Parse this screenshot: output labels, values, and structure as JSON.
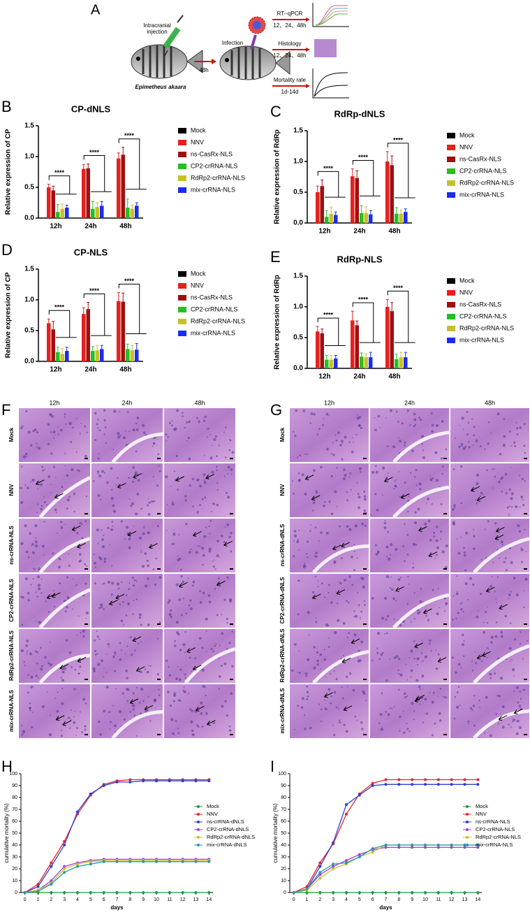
{
  "schematic": {
    "panel": "A",
    "injection": "Intracranial injection",
    "species": "Epimetheus akaara",
    "interval": "48h",
    "infection": "Infection",
    "assays": [
      {
        "name": "RT--qPCR",
        "times": "12、24、48h"
      },
      {
        "name": "Histology",
        "times": "12、24、48h"
      },
      {
        "name": "Mortality rate",
        "times": "1d-14d"
      }
    ]
  },
  "chart_data": [
    {
      "type": "bar",
      "panel": "B",
      "title": "CP-dNLS",
      "ylabel": "Relative expression of CP",
      "categories": [
        "12h",
        "24h",
        "48h"
      ],
      "significance": [
        "****",
        "****",
        "****"
      ],
      "ylim": [
        0,
        1.5
      ],
      "yticks": [
        {
          "value": 0,
          "label": "0.0"
        },
        0.5,
        {
          "value": 1,
          "label": "1.0"
        },
        1.5
      ],
      "series": [
        {
          "name": "Mock",
          "color": "#000000",
          "values": [
            null,
            null,
            null
          ],
          "errors": [
            null,
            null,
            null
          ]
        },
        {
          "name": "NNV",
          "color": "#e8201e",
          "values": [
            0.5,
            0.8,
            0.97
          ],
          "errors": [
            0.05,
            0.07,
            0.09
          ]
        },
        {
          "name": "ns-CasRx-NLS",
          "color": "#a01010",
          "values": [
            0.45,
            0.81,
            1.03
          ],
          "errors": [
            0.07,
            0.07,
            0.12
          ]
        },
        {
          "name": "CP2-crRNA-NLS",
          "color": "#22c020",
          "values": [
            0.1,
            0.15,
            0.17
          ],
          "errors": [
            0.12,
            0.12,
            0.14
          ]
        },
        {
          "name": "RdRp2-crRNA-NLS",
          "color": "#c8c028",
          "values": [
            0.15,
            0.18,
            0.15
          ],
          "errors": [
            0.08,
            0.07,
            0.06
          ]
        },
        {
          "name": "mix-crRNA-NLS",
          "color": "#1a2cf0",
          "values": [
            0.17,
            0.2,
            0.2
          ],
          "errors": [
            0.04,
            0.07,
            0.05
          ]
        }
      ]
    },
    {
      "type": "bar",
      "panel": "C",
      "title": "RdRp-dNLS",
      "ylabel": "Relative expression of RdRp",
      "categories": [
        "12h",
        "24h",
        "48h"
      ],
      "significance": [
        "****",
        "****",
        "****"
      ],
      "ylim": [
        0,
        1.5
      ],
      "yticks": [
        {
          "value": 0,
          "label": "0.0"
        },
        0.5,
        {
          "value": 1,
          "label": "1.0"
        },
        1.5
      ],
      "series": [
        {
          "name": "Mock",
          "color": "#000000",
          "values": [
            null,
            null,
            null
          ],
          "errors": [
            null,
            null,
            null
          ]
        },
        {
          "name": "NNV",
          "color": "#e8201e",
          "values": [
            0.5,
            0.76,
            1.0
          ],
          "errors": [
            0.1,
            0.12,
            0.16
          ]
        },
        {
          "name": "ns-CasRx-NLS",
          "color": "#a01010",
          "values": [
            0.6,
            0.73,
            0.94
          ],
          "errors": [
            0.1,
            0.12,
            0.15
          ]
        },
        {
          "name": "CP2-crRNA-NLS",
          "color": "#22c020",
          "values": [
            0.1,
            0.16,
            0.15
          ],
          "errors": [
            0.1,
            0.12,
            0.1
          ]
        },
        {
          "name": "RdRp2-crRNA-NLS",
          "color": "#c8c028",
          "values": [
            0.15,
            0.16,
            0.15
          ],
          "errors": [
            0.11,
            0.1,
            0.06
          ]
        },
        {
          "name": "mix-crRNA-NLS",
          "color": "#1a2cf0",
          "values": [
            0.13,
            0.14,
            0.18
          ],
          "errors": [
            0.05,
            0.06,
            0.05
          ]
        }
      ]
    },
    {
      "type": "bar",
      "panel": "D",
      "title": "CP-NLS",
      "ylabel": "Relative expression of CP",
      "categories": [
        "12h",
        "24h",
        "48h"
      ],
      "significance": [
        "****",
        "****",
        "****"
      ],
      "ylim": [
        0,
        1.5
      ],
      "yticks": [
        {
          "value": 0,
          "label": "0.0"
        },
        0.5,
        {
          "value": 1,
          "label": "1.0"
        },
        1.5
      ],
      "series": [
        {
          "name": "Mock",
          "color": "#000000",
          "values": [
            null,
            null,
            null
          ],
          "errors": [
            null,
            null,
            null
          ]
        },
        {
          "name": "NNV",
          "color": "#e8201e",
          "values": [
            0.62,
            0.77,
            0.98
          ],
          "errors": [
            0.07,
            0.1,
            0.14
          ]
        },
        {
          "name": "ns-CasRx-NLS",
          "color": "#a01010",
          "values": [
            0.52,
            0.85,
            0.97
          ],
          "errors": [
            0.13,
            0.11,
            0.14
          ]
        },
        {
          "name": "CP2-crRNA-NLS",
          "color": "#22c020",
          "values": [
            0.15,
            0.17,
            0.2
          ],
          "errors": [
            0.08,
            0.07,
            0.08
          ]
        },
        {
          "name": "RdRp2-crRNA-NLS",
          "color": "#c8c028",
          "values": [
            0.12,
            0.18,
            0.18
          ],
          "errors": [
            0.09,
            0.08,
            0.08
          ]
        },
        {
          "name": "mix-crRNA-NLS",
          "color": "#1a2cf0",
          "values": [
            0.17,
            0.2,
            0.19
          ],
          "errors": [
            0.06,
            0.06,
            0.1
          ]
        }
      ]
    },
    {
      "type": "bar",
      "panel": "E",
      "title": "RdRp-NLS",
      "ylabel": "Relative expression of RdRp",
      "categories": [
        "12h",
        "24h",
        "48h"
      ],
      "significance": [
        "****",
        "****",
        "****"
      ],
      "ylim": [
        0,
        1.5
      ],
      "yticks": [
        {
          "value": 0,
          "label": "0.0"
        },
        0.5,
        {
          "value": 1,
          "label": "1.0"
        },
        1.5
      ],
      "series": [
        {
          "name": "Mock",
          "color": "#000000",
          "values": [
            null,
            null,
            null
          ],
          "errors": [
            null,
            null,
            null
          ]
        },
        {
          "name": "NNV",
          "color": "#e8201e",
          "values": [
            0.6,
            0.78,
            1.0
          ],
          "errors": [
            0.08,
            0.15,
            0.12
          ]
        },
        {
          "name": "ns-CasRx-NLS",
          "color": "#a01010",
          "values": [
            0.57,
            0.7,
            0.93
          ],
          "errors": [
            0.07,
            0.07,
            0.14
          ]
        },
        {
          "name": "CP2-crRNA-NLS",
          "color": "#22c020",
          "values": [
            0.14,
            0.19,
            0.15
          ],
          "errors": [
            0.07,
            0.06,
            0.08
          ]
        },
        {
          "name": "RdRp2-crRNA-NLS",
          "color": "#c8c028",
          "values": [
            0.14,
            0.18,
            0.18
          ],
          "errors": [
            0.07,
            0.06,
            0.08
          ]
        },
        {
          "name": "mix-crRNA-NLS",
          "color": "#1a2cf0",
          "values": [
            0.16,
            0.18,
            0.18
          ],
          "errors": [
            0.05,
            0.08,
            0.08
          ]
        }
      ]
    },
    {
      "type": "line",
      "panel": "H",
      "xlabel": "days",
      "ylabel": "cumulative mortality (%)",
      "x": [
        0,
        1,
        2,
        3,
        4,
        5,
        6,
        7,
        8,
        9,
        10,
        11,
        12,
        13,
        14
      ],
      "xlim": [
        -0.3,
        14.3
      ],
      "xticks": [
        0,
        1,
        2,
        3,
        4,
        5,
        6,
        7,
        8,
        9,
        10,
        11,
        12,
        13,
        14
      ],
      "ylim": [
        0,
        100
      ],
      "yticks": [
        0,
        10,
        20,
        30,
        40,
        50,
        60,
        70,
        80,
        90,
        100
      ],
      "series": [
        {
          "name": "Mock",
          "color": "#1a9a3a",
          "values": [
            0,
            0,
            0,
            0,
            0,
            0,
            0,
            0,
            0,
            0,
            0,
            0,
            0,
            0,
            0
          ]
        },
        {
          "name": "NNV",
          "color": "#e8262b",
          "values": [
            0,
            7,
            25,
            43,
            66,
            82,
            91,
            94,
            95,
            95,
            95,
            95,
            95,
            95,
            95
          ]
        },
        {
          "name": "ns-crRNA-dNLS",
          "color": "#2b3fd6",
          "values": [
            0,
            5,
            22,
            40,
            68,
            83,
            90,
            93,
            93,
            94,
            94,
            94,
            94,
            94,
            94
          ]
        },
        {
          "name": "CP2-crRNA-dNLS",
          "color": "#a040e0",
          "values": [
            0,
            2,
            10,
            22,
            25,
            27,
            28,
            28,
            28,
            28,
            28,
            28,
            28,
            28,
            28
          ]
        },
        {
          "name": "RdRp2-crRNA-dNLS",
          "color": "#c8c030",
          "values": [
            0,
            2,
            8,
            20,
            24,
            26,
            27,
            27,
            27,
            27,
            27,
            27,
            27,
            27,
            27
          ]
        },
        {
          "name": "mix-crRNA-dNLS",
          "color": "#2a9aa0",
          "values": [
            0,
            1,
            7,
            17,
            22,
            24,
            26,
            26,
            26,
            26,
            26,
            26,
            26,
            26,
            26
          ]
        }
      ]
    },
    {
      "type": "line",
      "panel": "I",
      "xlabel": "days",
      "ylabel": "cumulative mortality (%)",
      "x": [
        0,
        1,
        2,
        3,
        4,
        5,
        6,
        7,
        8,
        9,
        10,
        11,
        12,
        13,
        14
      ],
      "xlim": [
        -0.3,
        14.3
      ],
      "xticks": [
        0,
        1,
        2,
        3,
        4,
        5,
        6,
        7,
        8,
        9,
        10,
        11,
        12,
        13,
        14
      ],
      "ylim": [
        0,
        100
      ],
      "yticks": [
        0,
        10,
        20,
        30,
        40,
        50,
        60,
        70,
        80,
        90,
        100
      ],
      "series": [
        {
          "name": "Mock",
          "color": "#1a9a3a",
          "values": [
            0,
            0,
            0,
            0,
            0,
            0,
            0,
            0,
            0,
            0,
            0,
            0,
            0,
            0,
            0
          ]
        },
        {
          "name": "NNV",
          "color": "#e8262b",
          "values": [
            0,
            5,
            25,
            41,
            66,
            83,
            92,
            95,
            95,
            95,
            95,
            95,
            95,
            95,
            95
          ]
        },
        {
          "name": "ns-crRNA-NLS",
          "color": "#2b3fd6",
          "values": [
            0,
            3,
            22,
            42,
            74,
            82,
            90,
            91,
            91,
            91,
            91,
            91,
            91,
            91,
            91
          ]
        },
        {
          "name": "CP2-crRNA-NLS",
          "color": "#a040e0",
          "values": [
            0,
            3,
            15,
            22,
            27,
            32,
            36,
            38,
            38,
            38,
            38,
            38,
            38,
            38,
            38
          ]
        },
        {
          "name": "RdRp2-crRNA-NLS",
          "color": "#c8c030",
          "values": [
            0,
            2,
            12,
            20,
            24,
            30,
            34,
            40,
            40,
            40,
            40,
            40,
            40,
            40,
            40
          ]
        },
        {
          "name": "mix-crRNA-NLS",
          "color": "#2a9aa0",
          "values": [
            0,
            3,
            17,
            24,
            25,
            30,
            37,
            40,
            40,
            40,
            40,
            40,
            40,
            40,
            40
          ]
        }
      ]
    }
  ],
  "histology": [
    {
      "panel": "F",
      "columns": [
        "12h",
        "24h",
        "48h"
      ],
      "rows": [
        "Mock",
        "NNV",
        "ns-crRNA-NLS",
        "CP2-crRNA-NLS",
        "RdRp2-crRNA-NLS",
        "mix-crRNA-NLS"
      ]
    },
    {
      "panel": "G",
      "columns": [
        "12h",
        "24h",
        "48h"
      ],
      "rows": [
        "Mock",
        "NNV",
        "ns-crRNA-dNLS",
        "CP2-crRNA-dNLS",
        "RdRp2-crRNA-dNLS",
        "mix-crRNA-dNLS"
      ]
    }
  ]
}
